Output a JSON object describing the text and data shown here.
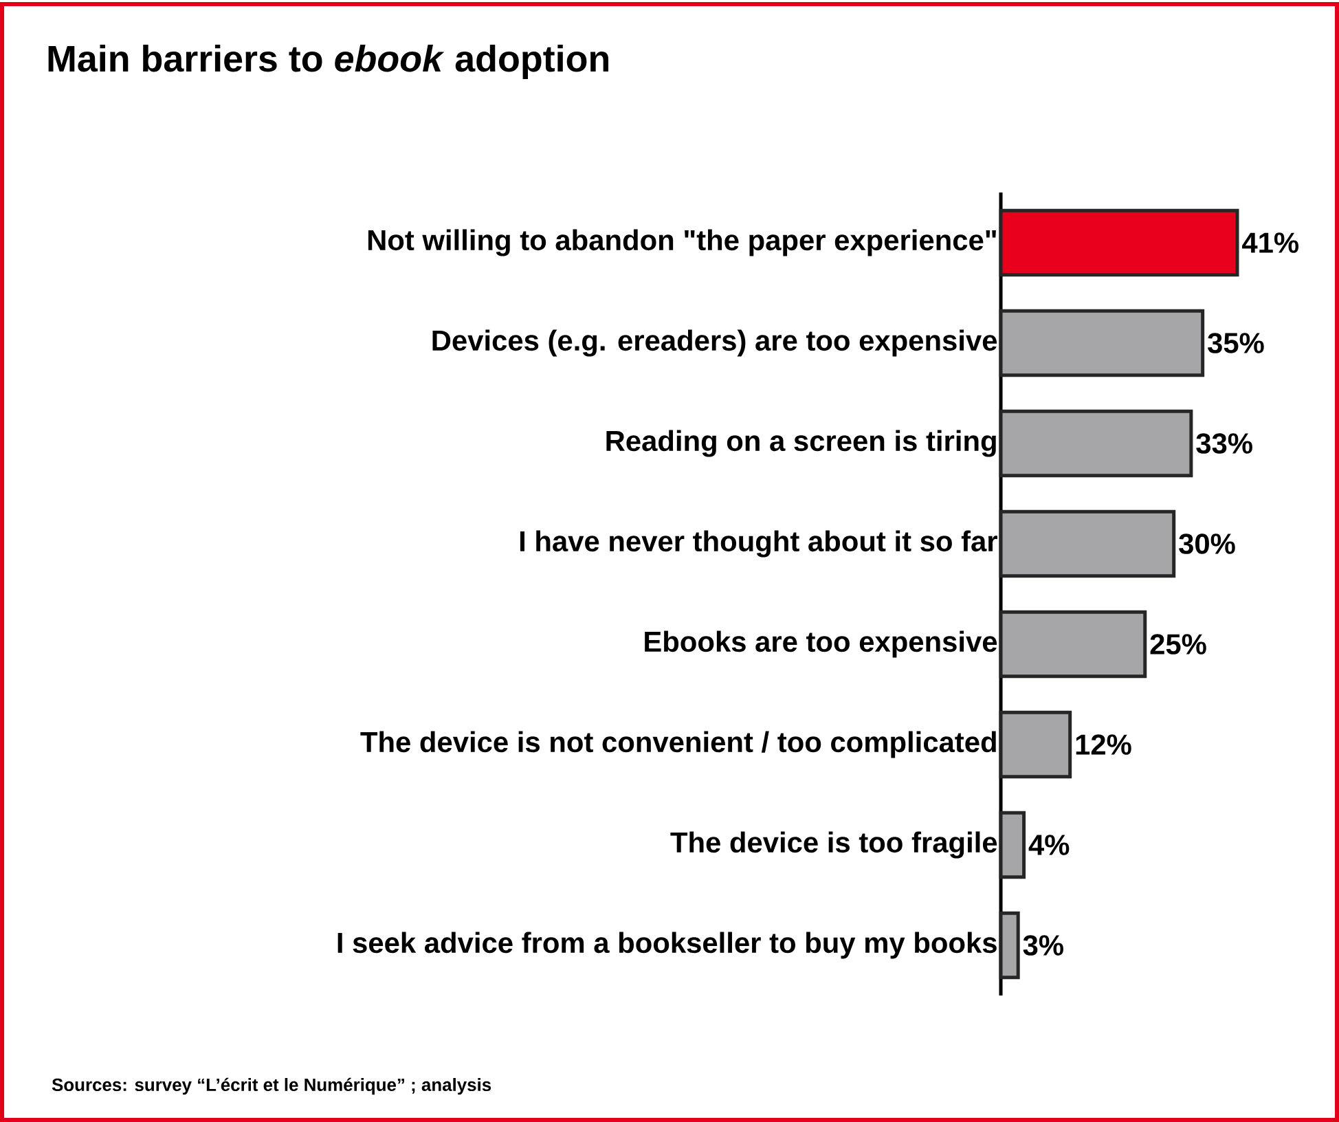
{
  "chart_data": {
    "type": "bar",
    "orientation": "horizontal",
    "title": "Main barriers to *ebook* adoption",
    "categories": [
      "Not willing to abandon \"the paper experience\"",
      "Devices (e.g. ereaders) are too expensive",
      "Reading on a screen is tiring",
      "I have never thought about it so far",
      "Ebooks are too expensive",
      "The device is not convenient / too complicated",
      "The device is too fragile",
      "I seek advice from a bookseller to buy my books"
    ],
    "values": [
      41,
      35,
      33,
      30,
      25,
      12,
      4,
      3
    ],
    "colors": [
      "#e8001c",
      "#a6a6a8",
      "#a6a6a8",
      "#a6a6a8",
      "#a6a6a8",
      "#a6a6a8",
      "#a6a6a8",
      "#a6a6a8"
    ],
    "value_labels": [
      "41%",
      "35%",
      "33%",
      "30%",
      "25%",
      "12%",
      "4%",
      "3%"
    ],
    "annotations": [
      "Sources: survey “L’écrit et le Numérique” ; analysis"
    ]
  }
}
